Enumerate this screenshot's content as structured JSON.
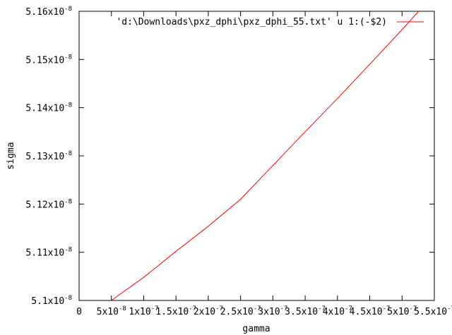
{
  "chart_data": {
    "type": "line",
    "xlabel": "gamma",
    "ylabel": "sigma",
    "legend": "top-right",
    "grid": false,
    "xlim": [
      0,
      5.5e-07
    ],
    "ylim": [
      5.1e-08,
      5.16e-08
    ],
    "x_ticks": [
      {
        "value": 0,
        "mantissa": "0",
        "exp": ""
      },
      {
        "value": 5e-08,
        "mantissa": "5x10",
        "exp": "-8"
      },
      {
        "value": 1e-07,
        "mantissa": "1x10",
        "exp": "-7"
      },
      {
        "value": 1.5e-07,
        "mantissa": "1.5x10",
        "exp": "-7"
      },
      {
        "value": 2e-07,
        "mantissa": "2x10",
        "exp": "-7"
      },
      {
        "value": 2.5e-07,
        "mantissa": "2.5x10",
        "exp": "-7"
      },
      {
        "value": 3e-07,
        "mantissa": "3x10",
        "exp": "-7"
      },
      {
        "value": 3.5e-07,
        "mantissa": "3.5x10",
        "exp": "-7"
      },
      {
        "value": 4e-07,
        "mantissa": "4x10",
        "exp": "-7"
      },
      {
        "value": 4.5e-07,
        "mantissa": "4.5x10",
        "exp": "-7"
      },
      {
        "value": 5e-07,
        "mantissa": "5x10",
        "exp": "-7"
      },
      {
        "value": 5.5e-07,
        "mantissa": "5.5x10",
        "exp": "-7"
      }
    ],
    "y_ticks": [
      {
        "value": 5.1e-08,
        "mantissa": "5.1x10",
        "exp": "-8"
      },
      {
        "value": 5.11e-08,
        "mantissa": "5.11x10",
        "exp": "-8"
      },
      {
        "value": 5.12e-08,
        "mantissa": "5.12x10",
        "exp": "-8"
      },
      {
        "value": 5.13e-08,
        "mantissa": "5.13x10",
        "exp": "-8"
      },
      {
        "value": 5.14e-08,
        "mantissa": "5.14x10",
        "exp": "-8"
      },
      {
        "value": 5.15e-08,
        "mantissa": "5.15x10",
        "exp": "-8"
      },
      {
        "value": 5.16e-08,
        "mantissa": "5.16x10",
        "exp": "-8"
      }
    ],
    "series": [
      {
        "name": "'d:\\Downloads\\pxz_dphi\\pxz_dphi_55.txt' u 1:(-$2)",
        "color": "#ff0000",
        "x": [
          5e-08,
          1e-07,
          1.5e-07,
          2e-07,
          2.5e-07,
          3e-07,
          3.5e-07,
          4e-07,
          4.5e-07,
          5e-07,
          5.5e-07
        ],
        "y": [
          5.1e-08,
          5.1048e-08,
          5.1102e-08,
          5.1154e-08,
          5.121e-08,
          5.128e-08,
          5.135e-08,
          5.1419e-08,
          5.149e-08,
          5.1562e-08,
          5.1636e-08
        ]
      }
    ]
  }
}
